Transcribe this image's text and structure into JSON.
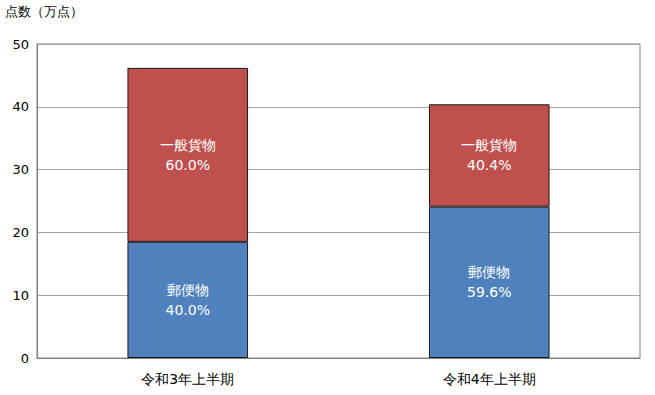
{
  "chart_data": {
    "type": "bar",
    "stacked": true,
    "y_label": "点数（万点）",
    "categories": [
      "令和3年上半期",
      "令和4年上半期"
    ],
    "series": [
      {
        "name": "郵便物",
        "color": "#4f81bd",
        "values": [
          18.5,
          24.1
        ],
        "share_labels": [
          "40.0%",
          "59.6%"
        ]
      },
      {
        "name": "一般貨物",
        "color": "#c0504d",
        "values": [
          27.7,
          16.3
        ],
        "share_labels": [
          "60.0%",
          "40.4%"
        ]
      }
    ],
    "ylim": [
      0,
      50
    ],
    "yticks": [
      0,
      10,
      20,
      30,
      40,
      50
    ],
    "grid": true
  }
}
